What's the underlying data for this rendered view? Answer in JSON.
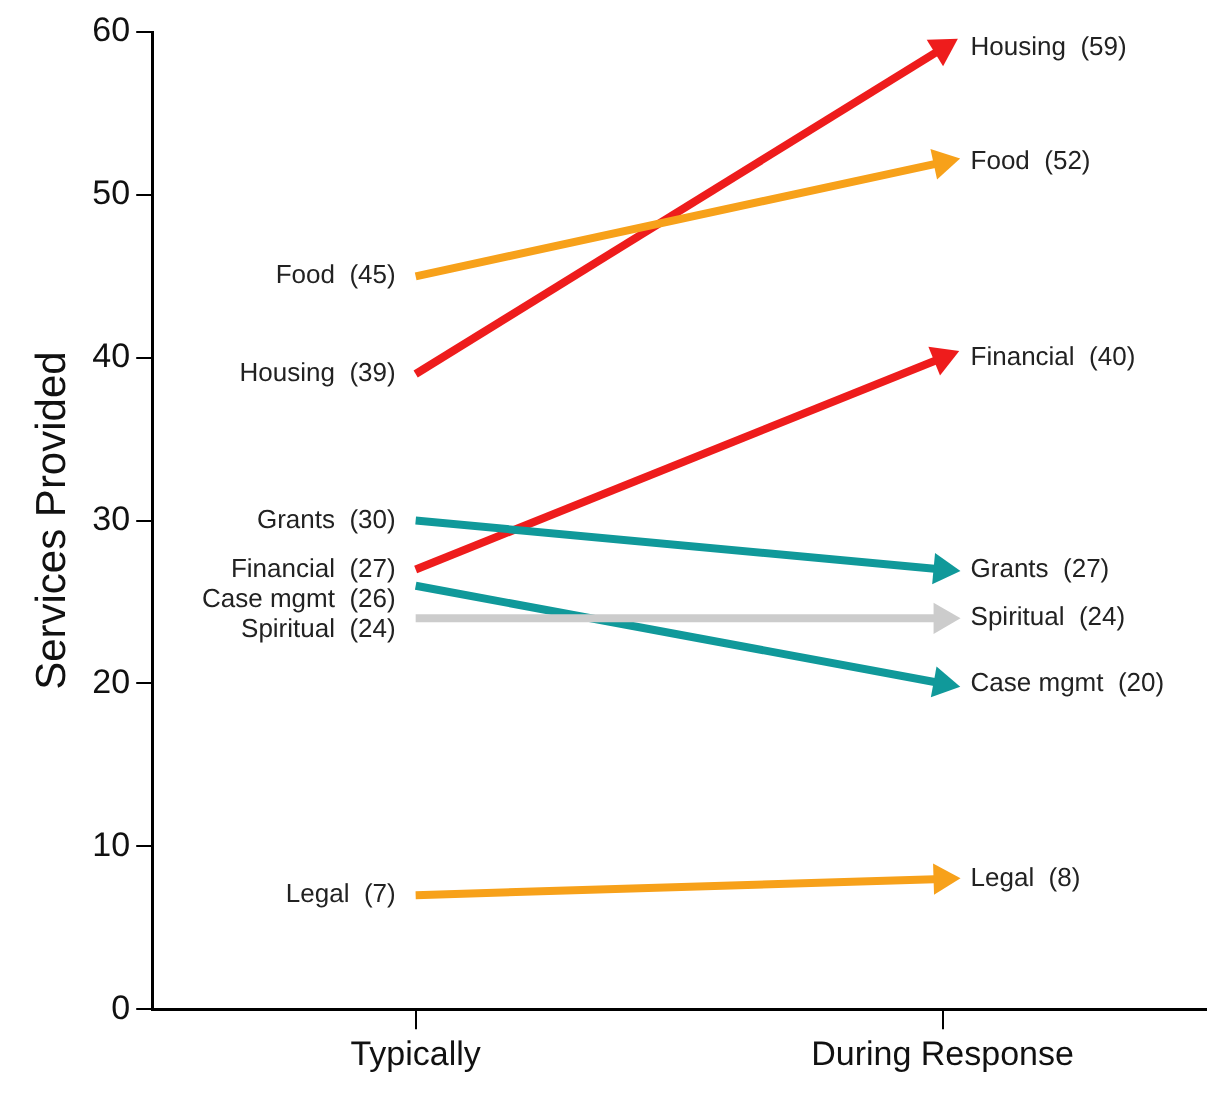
{
  "chart_data": {
    "type": "line",
    "ylabel": "Services Provided",
    "categories": [
      "Typically",
      "During Response"
    ],
    "ylim": [
      0,
      60
    ],
    "yticks": [
      0,
      10,
      20,
      30,
      40,
      50,
      60
    ],
    "series": [
      {
        "name": "Spiritual",
        "color": "#cccccc",
        "values": [
          24,
          24
        ],
        "value_labels": [
          "(24)",
          "(24)"
        ]
      },
      {
        "name": "Legal",
        "color": "#f7a11a",
        "values": [
          7,
          8
        ],
        "value_labels": [
          "(7)",
          "(8)"
        ]
      },
      {
        "name": "Food",
        "color": "#f7a11a",
        "values": [
          45,
          52
        ],
        "value_labels": [
          "(45)",
          "(52)"
        ]
      },
      {
        "name": "Grants",
        "color": "#10999a",
        "values": [
          30,
          27
        ],
        "value_labels": [
          "(30)",
          "(27)"
        ]
      },
      {
        "name": "Case mgmt",
        "color": "#10999a",
        "values": [
          26,
          20
        ],
        "value_labels": [
          "(26)",
          "(20)"
        ]
      },
      {
        "name": "Housing",
        "color": "#ee1c1c",
        "values": [
          39,
          59
        ],
        "value_labels": [
          "(39)",
          "(59)"
        ]
      },
      {
        "name": "Financial",
        "color": "#ee1c1c",
        "values": [
          27,
          40
        ],
        "value_labels": [
          "(27)",
          "(40)"
        ]
      }
    ]
  }
}
